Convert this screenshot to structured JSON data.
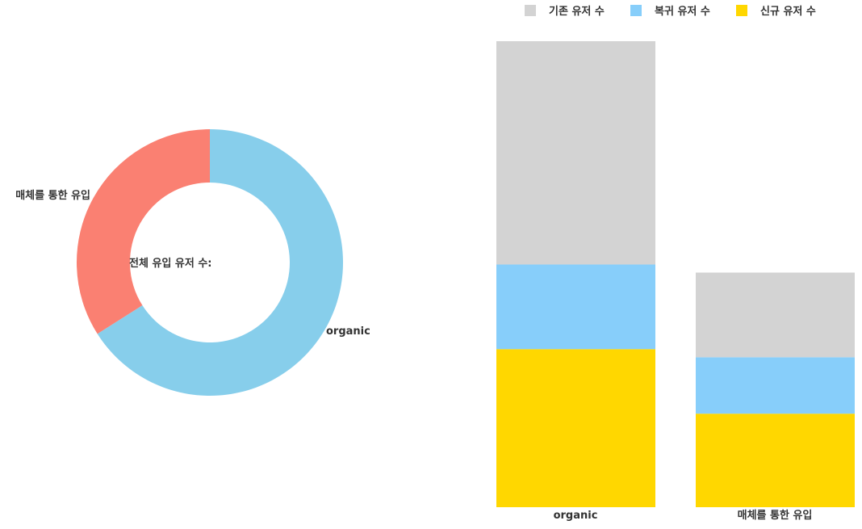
{
  "chart_data": [
    {
      "type": "pie",
      "variant": "donut",
      "center_label": "전체 유입 유저 수:",
      "slices": [
        {
          "label": "organic",
          "value": 66,
          "color": "#87CEEB"
        },
        {
          "label": "매체를 통한 유입",
          "value": 34,
          "color": "#FA8072"
        }
      ]
    },
    {
      "type": "bar",
      "stacked": true,
      "categories": [
        "organic",
        "매체를 통한 유입"
      ],
      "legend_position": "top-right",
      "series": [
        {
          "name": "기존 유저 수",
          "color": "#D3D3D3",
          "values": [
            277,
            105
          ]
        },
        {
          "name": "복귀 유저 수",
          "color": "#87CEFA",
          "values": [
            105,
            70
          ]
        },
        {
          "name": "신규 유저 수",
          "color": "#FFD700",
          "values": [
            196,
            116
          ]
        }
      ],
      "ylim": [
        0,
        578
      ]
    }
  ]
}
